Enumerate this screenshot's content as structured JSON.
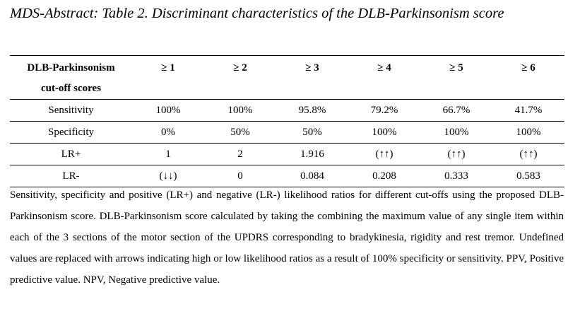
{
  "title": "MDS-Abstract: Table 2. Discriminant characteristics of the DLB-Parkinsonism score",
  "table": {
    "header_line1": "DLB-Parkinsonism",
    "header_line2": "cut-off scores",
    "columns": [
      "≥ 1",
      "≥ 2",
      "≥ 3",
      "≥ 4",
      "≥ 5",
      "≥ 6"
    ],
    "rows": [
      {
        "label": "Sensitivity",
        "values": [
          "100%",
          "100%",
          "95.8%",
          "79.2%",
          "66.7%",
          "41.7%"
        ]
      },
      {
        "label": "Specificity",
        "values": [
          "0%",
          "50%",
          "50%",
          "100%",
          "100%",
          "100%"
        ]
      },
      {
        "label": "LR+",
        "values": [
          "1",
          "2",
          "1.916",
          "(↑↑)",
          "(↑↑)",
          "(↑↑)"
        ]
      },
      {
        "label": "LR-",
        "values": [
          "(↓↓)",
          "0",
          "0.084",
          "0.208",
          "0.333",
          "0.583"
        ]
      }
    ]
  },
  "footnote": "Sensitivity, specificity and positive (LR+) and negative (LR-) likelihood ratios for different cut-offs using the proposed DLB-Parkinsonism score. DLB-Parkinsonism score calculated by taking the combining the maximum value of any single item within each of the 3 sections of the motor section of the UPDRS corresponding to bradykinesia, rigidity and rest tremor. Undefined values are replaced with arrows indicating high or low likelihood ratios as a result of 100% specificity or sensitivity. PPV, Positive predictive value. NPV, Negative predictive value."
}
